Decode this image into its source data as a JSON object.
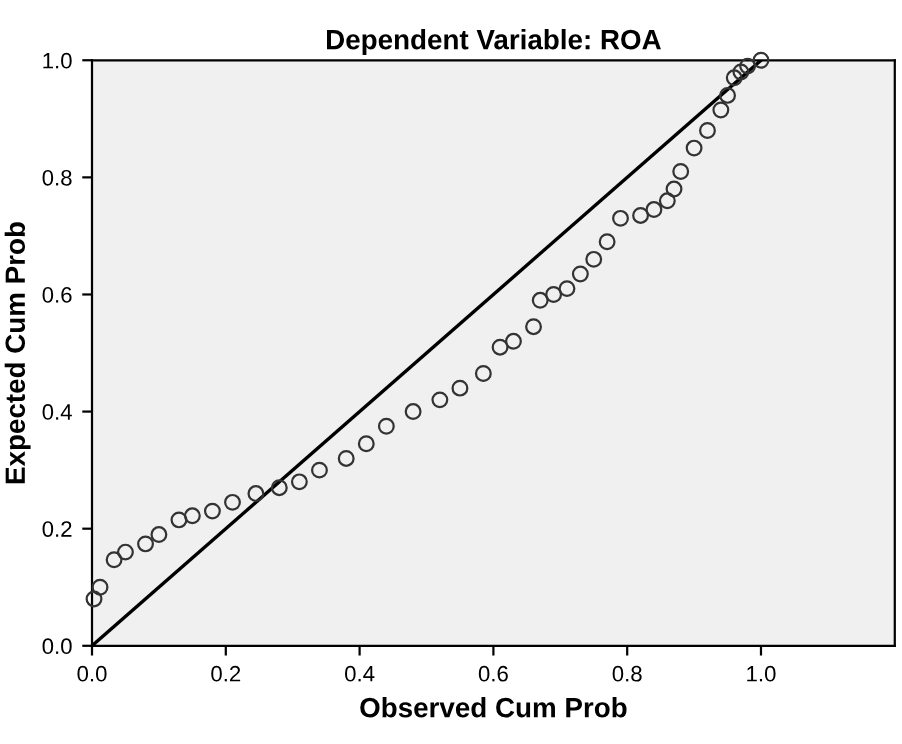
{
  "chart_data": {
    "type": "scatter",
    "title": "Dependent Variable: ROA",
    "xlabel": "Observed Cum Prob",
    "ylabel": "Expected Cum Prob",
    "xlim": [
      0,
      1.2
    ],
    "ylim": [
      0,
      1
    ],
    "xticks": [
      {
        "value": 0,
        "label": "0.0"
      },
      {
        "value": 0.2,
        "label": "0.2"
      },
      {
        "value": 0.4,
        "label": "0.4"
      },
      {
        "value": 0.6,
        "label": "0.6"
      },
      {
        "value": 0.8,
        "label": "0.8"
      },
      {
        "value": 1,
        "label": "1.0"
      }
    ],
    "yticks": [
      {
        "value": 0,
        "label": "0.0"
      },
      {
        "value": 0.2,
        "label": "0.2"
      },
      {
        "value": 0.4,
        "label": "0.4"
      },
      {
        "value": 0.6,
        "label": "0.6"
      },
      {
        "value": 0.8,
        "label": "0.8"
      },
      {
        "value": 1,
        "label": "1.0"
      }
    ],
    "grid": false,
    "legend": false,
    "series": [
      {
        "marker": "circle",
        "color": "#333333",
        "x": [
          0.003,
          0.012,
          0.033,
          0.05,
          0.08,
          0.1,
          0.13,
          0.15,
          0.18,
          0.21,
          0.245,
          0.28,
          0.31,
          0.34,
          0.38,
          0.41,
          0.44,
          0.48,
          0.52,
          0.55,
          0.585,
          0.61,
          0.63,
          0.66,
          0.67,
          0.69,
          0.71,
          0.73,
          0.75,
          0.77,
          0.79,
          0.82,
          0.84,
          0.86,
          0.87,
          0.88,
          0.9,
          0.92,
          0.94,
          0.95,
          0.96,
          0.97,
          0.98,
          1.0
        ],
        "values": [
          0.08,
          0.1,
          0.147,
          0.16,
          0.174,
          0.19,
          0.215,
          0.222,
          0.23,
          0.245,
          0.26,
          0.27,
          0.28,
          0.3,
          0.32,
          0.345,
          0.375,
          0.4,
          0.42,
          0.44,
          0.465,
          0.51,
          0.52,
          0.545,
          0.59,
          0.6,
          0.61,
          0.635,
          0.66,
          0.69,
          0.73,
          0.735,
          0.745,
          0.76,
          0.78,
          0.81,
          0.85,
          0.88,
          0.915,
          0.94,
          0.97,
          0.98,
          0.99,
          1.0
        ]
      },
      {
        "type": "line",
        "marker": "none",
        "color": "#000000",
        "x": [
          0,
          1
        ],
        "values": [
          0,
          1
        ]
      }
    ]
  }
}
